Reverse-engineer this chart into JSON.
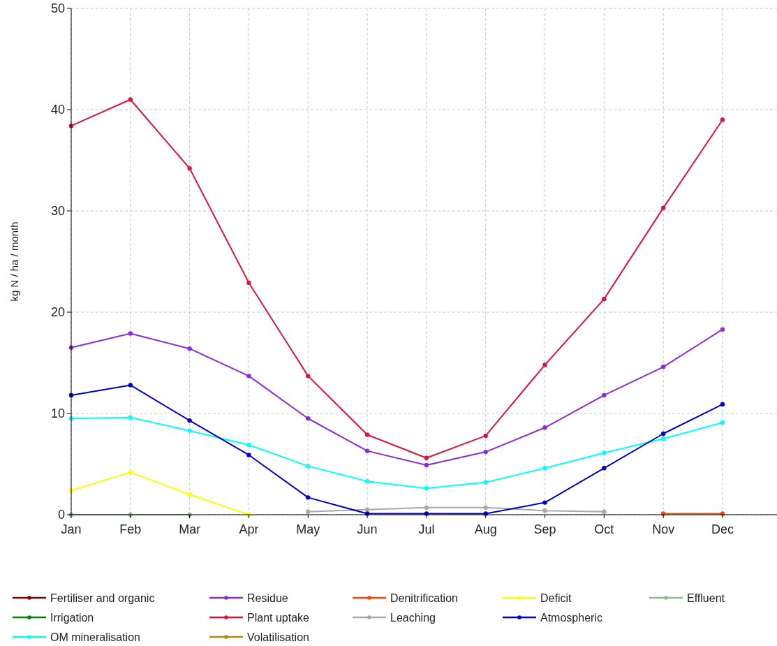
{
  "chart_data": {
    "type": "line",
    "ylabel": "kg N / ha / month",
    "categories": [
      "Jan",
      "Feb",
      "Mar",
      "Apr",
      "May",
      "Jun",
      "Jul",
      "Aug",
      "Sep",
      "Oct",
      "Nov",
      "Dec"
    ],
    "ylim": [
      0,
      50
    ],
    "yticks": [
      0,
      10,
      20,
      30,
      40,
      50
    ],
    "grid": true,
    "legend": "bottom",
    "marker": "circle",
    "line_style": "solid",
    "series": [
      {
        "name": "Fertiliser and organic",
        "color": "#8b0000",
        "values": [
          null,
          null,
          null,
          null,
          null,
          null,
          null,
          null,
          null,
          null,
          null,
          null
        ]
      },
      {
        "name": "Irrigation",
        "color": "#008000",
        "values": [
          null,
          null,
          null,
          null,
          null,
          null,
          null,
          null,
          null,
          null,
          null,
          null
        ]
      },
      {
        "name": "OM mineralisation",
        "color": "#00ffff",
        "values": [
          9.5,
          9.6,
          8.3,
          6.9,
          4.8,
          3.3,
          2.6,
          3.2,
          4.6,
          6.1,
          7.5,
          9.1
        ]
      },
      {
        "name": "Residue",
        "color": "#8a2be2",
        "values": [
          16.5,
          17.9,
          16.4,
          13.7,
          9.5,
          6.3,
          4.9,
          6.2,
          8.6,
          11.8,
          14.6,
          18.3
        ]
      },
      {
        "name": "Plant uptake",
        "color": "#dc143c",
        "values": [
          38.4,
          41.0,
          34.2,
          22.9,
          13.7,
          7.9,
          5.6,
          7.8,
          14.8,
          21.3,
          30.3,
          39.0
        ]
      },
      {
        "name": "Volatilisation",
        "color": "#b8860b",
        "values": [
          null,
          null,
          null,
          null,
          null,
          null,
          null,
          null,
          null,
          null,
          null,
          null
        ]
      },
      {
        "name": "Denitrification",
        "color": "#ff4500",
        "values": [
          null,
          null,
          null,
          null,
          null,
          null,
          null,
          null,
          null,
          null,
          0.1,
          0.1
        ]
      },
      {
        "name": "Leaching",
        "color": "#a9a9a9",
        "values": [
          null,
          null,
          null,
          null,
          0.3,
          0.5,
          0.7,
          0.7,
          0.4,
          0.3,
          null,
          null
        ]
      },
      {
        "name": "Deficit",
        "color": "#ffff00",
        "values": [
          2.4,
          4.2,
          2.0,
          0,
          null,
          null,
          null,
          null,
          null,
          null,
          null,
          null
        ]
      },
      {
        "name": "Atmospheric",
        "color": "#0000cd",
        "values": [
          11.8,
          12.8,
          9.3,
          5.9,
          1.7,
          0.1,
          0.1,
          0.1,
          1.2,
          4.6,
          8.0,
          10.9
        ]
      },
      {
        "name": "Effluent",
        "color": "#8fbc8f",
        "values": [
          0,
          0,
          0,
          null,
          null,
          null,
          null,
          null,
          null,
          null,
          null,
          null
        ]
      }
    ]
  }
}
